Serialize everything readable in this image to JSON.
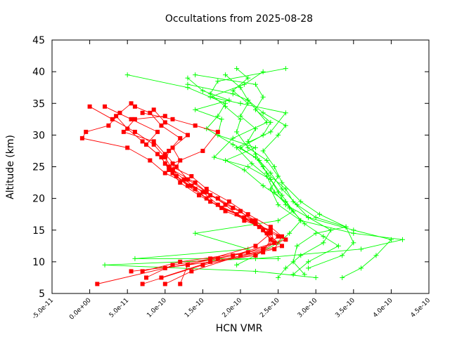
{
  "chart_data": {
    "type": "scatter",
    "title": "Occultations from 2025-08-28",
    "xlabel": "HCN VMR",
    "ylabel": "Altitude (km)",
    "xlim": [
      -5e-11,
      4.5e-10
    ],
    "ylim": [
      5,
      45
    ],
    "xticks": [
      "-5.0e-11",
      "0.0e+00",
      "5.0e-11",
      "1.0e-10",
      "1.5e-10",
      "2.0e-10",
      "2.5e-10",
      "3.0e-10",
      "3.5e-10",
      "4.0e-10",
      "4.5e-10"
    ],
    "yticks": [
      "5",
      "10",
      "15",
      "20",
      "25",
      "30",
      "35",
      "40",
      "45"
    ],
    "grid": false,
    "legend": "none",
    "series": [
      {
        "color": "#ff0000",
        "marker": "square",
        "profiles": [
          [
            [
              1.2e-10,
              6.5
            ],
            [
              1.3e-10,
              9.5
            ],
            [
              1.6e-10,
              10.5
            ],
            [
              2.2e-10,
              12.5
            ],
            [
              2.4e-10,
              14.5
            ],
            [
              2.2e-10,
              16.5
            ],
            [
              1.9e-10,
              18.5
            ],
            [
              1.6e-10,
              20.5
            ],
            [
              1.4e-10,
              22.5
            ],
            [
              1.1e-10,
              24.5
            ],
            [
              1e-10,
              26.5
            ],
            [
              8.5e-11,
              28.5
            ],
            [
              6e-11,
              30.5
            ],
            [
              3e-11,
              32.5
            ],
            [
              0.0,
              34.5
            ]
          ],
          [
            [
              1e-11,
              6.5
            ],
            [
              1e-10,
              9.0
            ],
            [
              1.7e-10,
              10.5
            ],
            [
              2.3e-10,
              12.0
            ],
            [
              2.5e-10,
              14.0
            ],
            [
              2.2e-10,
              16.0
            ],
            [
              1.8e-10,
              18.0
            ],
            [
              1.55e-10,
              20.0
            ],
            [
              1.3e-10,
              22.0
            ],
            [
              1.1e-10,
              24.0
            ],
            [
              1.2e-10,
              26.0
            ],
            [
              1.1e-10,
              28.0
            ],
            [
              1.3e-10,
              30.0
            ],
            [
              1e-10,
              32.0
            ],
            [
              8.5e-11,
              34.0
            ]
          ],
          [
            [
              7.5e-11,
              7.5
            ],
            [
              1.1e-10,
              9.5
            ],
            [
              1.9e-10,
              11.0
            ],
            [
              2.45e-10,
              13.0
            ],
            [
              2.3e-10,
              15.0
            ],
            [
              2.05e-10,
              17.0
            ],
            [
              1.7e-10,
              19.0
            ],
            [
              1.5e-10,
              21.0
            ],
            [
              1.25e-10,
              23.0
            ],
            [
              1.05e-10,
              25.0
            ],
            [
              9e-11,
              27.0
            ],
            [
              7e-11,
              29.0
            ],
            [
              5e-11,
              31.0
            ],
            [
              3.5e-11,
              33.0
            ],
            [
              5.5e-11,
              35.0
            ]
          ],
          [
            [
              7e-11,
              8.5
            ],
            [
              1.2e-10,
              10.0
            ],
            [
              2.1e-10,
              11.5
            ],
            [
              2.6e-10,
              13.5
            ],
            [
              2.4e-10,
              15.5
            ],
            [
              2.1e-10,
              17.5
            ],
            [
              1.85e-10,
              19.5
            ],
            [
              1.55e-10,
              21.5
            ],
            [
              1.35e-10,
              23.5
            ],
            [
              1e-10,
              25.5
            ],
            [
              1.05e-10,
              27.5
            ],
            [
              1.2e-10,
              29.5
            ],
            [
              9.5e-11,
              31.5
            ],
            [
              8e-11,
              33.5
            ],
            [
              6e-11,
              34.5
            ]
          ],
          [
            [
              1e-10,
              6.5
            ],
            [
              1.35e-10,
              8.5
            ],
            [
              2e-10,
              11.0
            ],
            [
              2.55e-10,
              12.5
            ],
            [
              2.35e-10,
              14.5
            ],
            [
              2.15e-10,
              16.5
            ],
            [
              1.75e-10,
              18.5
            ],
            [
              1.45e-10,
              20.5
            ],
            [
              1.2e-10,
              22.5
            ],
            [
              1.05e-10,
              24.5
            ],
            [
              9.5e-11,
              26.5
            ],
            [
              7.5e-11,
              28.5
            ],
            [
              9e-11,
              30.5
            ],
            [
              5.5e-11,
              32.5
            ],
            [
              2e-11,
              34.5
            ]
          ],
          [
            [
              7e-11,
              6.5
            ],
            [
              1.5e-10,
              9.5
            ],
            [
              2.3e-10,
              11.5
            ],
            [
              2.4e-10,
              13.5
            ],
            [
              2.25e-10,
              15.5
            ],
            [
              1.95e-10,
              17.5
            ],
            [
              1.6e-10,
              19.5
            ],
            [
              1.4e-10,
              21.5
            ],
            [
              1.15e-10,
              23.5
            ],
            [
              1.1e-10,
              25.5
            ],
            [
              1.5e-10,
              27.5
            ],
            [
              1.7e-10,
              30.5
            ],
            [
              1.4e-10,
              31.5
            ],
            [
              1.1e-10,
              32.5
            ],
            [
              7e-11,
              33.5
            ]
          ],
          [
            [
              9.5e-11,
              7.5
            ],
            [
              1.6e-10,
              10.0
            ],
            [
              2.45e-10,
              12.0
            ],
            [
              2.55e-10,
              14.0
            ],
            [
              2.2e-10,
              16.0
            ],
            [
              2e-10,
              18.0
            ],
            [
              1.7e-10,
              20.0
            ],
            [
              1.35e-10,
              22.0
            ],
            [
              1e-10,
              24.0
            ],
            [
              8e-11,
              26.0
            ],
            [
              5e-11,
              28.0
            ],
            [
              -1e-11,
              29.5
            ],
            [
              -5e-12,
              30.5
            ],
            [
              2.5e-11,
              31.5
            ],
            [
              4e-11,
              33.5
            ]
          ],
          [
            [
              5.5e-11,
              8.5
            ],
            [
              1.3e-10,
              9.5
            ],
            [
              2.2e-10,
              11.0
            ],
            [
              2.45e-10,
              13.0
            ],
            [
              2.4e-10,
              15.0
            ],
            [
              2.05e-10,
              16.5
            ],
            [
              1.8e-10,
              19.0
            ],
            [
              1.55e-10,
              21.0
            ],
            [
              1.3e-10,
              23.0
            ],
            [
              1.15e-10,
              25.0
            ],
            [
              1e-10,
              27.0
            ],
            [
              8.5e-11,
              29.0
            ],
            [
              4.5e-11,
              30.5
            ],
            [
              6e-11,
              32.5
            ],
            [
              1e-10,
              33.0
            ]
          ]
        ]
      },
      {
        "color": "#00ff00",
        "marker": "plus",
        "profiles": [
          [
            [
              2.5e-10,
              7.5
            ],
            [
              2.6e-10,
              9.0
            ],
            [
              2.8e-10,
              11.0
            ],
            [
              3.1e-10,
              13.0
            ],
            [
              3.2e-10,
              15.0
            ],
            [
              2.9e-10,
              17.0
            ],
            [
              2.6e-10,
              19.0
            ],
            [
              2.5e-10,
              21.0
            ],
            [
              2.4e-10,
              23.0
            ],
            [
              2.3e-10,
              25.0
            ],
            [
              2.2e-10,
              27.0
            ],
            [
              2.1e-10,
              29.0
            ],
            [
              2.2e-10,
              31.0
            ],
            [
              2e-10,
              33.0
            ],
            [
              2.1e-10,
              35.0
            ],
            [
              1.9e-10,
              37.0
            ],
            [
              2.1e-10,
              39.0
            ],
            [
              1.95e-10,
              40.5
            ]
          ],
          [
            [
              3e-10,
              7.5
            ],
            [
              2.2e-10,
              8.5
            ],
            [
              2e-11,
              9.5
            ],
            [
              2.2e-10,
              10.5
            ],
            [
              3.6e-10,
              12.0
            ],
            [
              4.15e-10,
              13.5
            ],
            [
              3.5e-10,
              14.5
            ],
            [
              2.8e-10,
              16.5
            ],
            [
              2.5e-10,
              19.0
            ],
            [
              2.4e-10,
              21.5
            ],
            [
              2.5e-10,
              23.5
            ],
            [
              2.35e-10,
              26.0
            ],
            [
              2.1e-10,
              28.0
            ],
            [
              1.95e-10,
              30.5
            ],
            [
              2e-10,
              32.5
            ],
            [
              1.8e-10,
              34.5
            ],
            [
              1.6e-10,
              36.5
            ],
            [
              1.7e-10,
              38.5
            ],
            [
              2.6e-10,
              40.5
            ]
          ],
          [
            [
              3.35e-10,
              7.5
            ],
            [
              3.6e-10,
              9.0
            ],
            [
              3.8e-10,
              11.0
            ],
            [
              4e-10,
              13.5
            ],
            [
              3.5e-10,
              15.0
            ],
            [
              2.9e-10,
              17.0
            ],
            [
              2.7e-10,
              19.5
            ],
            [
              2.6e-10,
              21.5
            ],
            [
              2.35e-10,
              24.0
            ],
            [
              2.2e-10,
              26.5
            ],
            [
              1.9e-10,
              28.5
            ],
            [
              1.55e-10,
              31.0
            ],
            [
              1.7e-10,
              33.0
            ],
            [
              1.8e-10,
              35.0
            ],
            [
              1.3e-10,
              37.5
            ],
            [
              5e-11,
              39.5
            ]
          ],
          [
            [
              2.85e-10,
              8.0
            ],
            [
              2.7e-10,
              10.0
            ],
            [
              2.75e-10,
              12.5
            ],
            [
              3e-10,
              14.5
            ],
            [
              3.4e-10,
              15.5
            ],
            [
              3e-10,
              17.0
            ],
            [
              2.75e-10,
              19.0
            ],
            [
              2.55e-10,
              21.5
            ],
            [
              2.4e-10,
              24.0
            ],
            [
              2.25e-10,
              26.0
            ],
            [
              2e-10,
              28.0
            ],
            [
              2.3e-10,
              30.0
            ],
            [
              2.4e-10,
              32.0
            ],
            [
              2.2e-10,
              34.0
            ],
            [
              2.3e-10,
              36.0
            ],
            [
              2.2e-10,
              38.0
            ],
            [
              1.4e-10,
              39.5
            ]
          ],
          [
            [
              2.9e-10,
              9.0
            ],
            [
              3.35e-10,
              11.0
            ],
            [
              3.5e-10,
              13.0
            ],
            [
              3.4e-10,
              15.5
            ],
            [
              3.05e-10,
              17.5
            ],
            [
              2.8e-10,
              19.5
            ],
            [
              2.55e-10,
              22.5
            ],
            [
              2.45e-10,
              25.0
            ],
            [
              2.3e-10,
              27.5
            ],
            [
              2.5e-10,
              30.0
            ],
            [
              2.6e-10,
              31.5
            ],
            [
              2.3e-10,
              33.5
            ],
            [
              2.1e-10,
              35.5
            ],
            [
              2e-10,
              37.5
            ],
            [
              1.8e-10,
              39.5
            ]
          ],
          [
            [
              2.5e-10,
              10.5
            ],
            [
              6e-11,
              10.5
            ],
            [
              2.1e-10,
              12.0
            ],
            [
              1.4e-10,
              14.5
            ],
            [
              2.5e-10,
              16.5
            ],
            [
              2.7e-10,
              18.0
            ],
            [
              2.55e-10,
              20.5
            ],
            [
              2.4e-10,
              23.0
            ],
            [
              2.1e-10,
              25.0
            ],
            [
              1.65e-10,
              26.5
            ],
            [
              1.9e-10,
              29.5
            ],
            [
              2.35e-10,
              32.0
            ],
            [
              2.1e-10,
              35.5
            ],
            [
              1.9e-10,
              36.5
            ],
            [
              1.3e-10,
              38.0
            ]
          ],
          [
            [
              1.95e-10,
              9.5
            ],
            [
              2.2e-10,
              11.0
            ],
            [
              2.5e-10,
              13.0
            ],
            [
              2.65e-10,
              14.5
            ],
            [
              2.8e-10,
              16.5
            ],
            [
              2.6e-10,
              19.5
            ],
            [
              2.3e-10,
              22.0
            ],
            [
              2.05e-10,
              24.5
            ],
            [
              1.8e-10,
              26.0
            ],
            [
              2.2e-10,
              28.0
            ],
            [
              1.7e-10,
              30.0
            ],
            [
              1.75e-10,
              32.5
            ],
            [
              1.4e-10,
              34.0
            ],
            [
              1.85e-10,
              35.5
            ],
            [
              1.5e-10,
              37.0
            ],
            [
              1.3e-10,
              39.0
            ]
          ],
          [
            [
              2.7e-10,
              8.0
            ],
            [
              2.9e-10,
              10.0
            ],
            [
              3.3e-10,
              12.5
            ],
            [
              3.1e-10,
              14.0
            ],
            [
              2.85e-10,
              16.0
            ],
            [
              2.65e-10,
              18.5
            ],
            [
              2.45e-10,
              21.0
            ],
            [
              2.35e-10,
              23.5
            ],
            [
              2.15e-10,
              25.5
            ],
            [
              1.95e-10,
              28.0
            ],
            [
              2.4e-10,
              30.5
            ],
            [
              2.6e-10,
              33.5
            ],
            [
              2e-10,
              35.0
            ],
            [
              1.6e-10,
              36.0
            ],
            [
              2.05e-10,
              38.0
            ],
            [
              2.3e-10,
              40.0
            ]
          ]
        ]
      }
    ]
  }
}
